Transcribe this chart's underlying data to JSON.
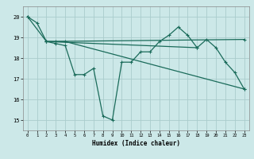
{
  "title": "",
  "xlabel": "Humidex (Indice chaleur)",
  "ylabel": "",
  "bg_color": "#cce8e8",
  "grid_color": "#aacccc",
  "line_color": "#1a6b5a",
  "xlim": [
    -0.5,
    23.5
  ],
  "ylim": [
    14.5,
    20.5
  ],
  "yticks": [
    15,
    16,
    17,
    18,
    19,
    20
  ],
  "xticks": [
    0,
    1,
    2,
    3,
    4,
    5,
    6,
    7,
    8,
    9,
    10,
    11,
    12,
    13,
    14,
    15,
    16,
    17,
    18,
    19,
    20,
    21,
    22,
    23
  ],
  "series": [
    {
      "x": [
        0,
        1,
        2,
        3,
        4,
        5,
        6,
        7,
        8,
        9,
        10,
        11,
        12,
        13,
        14,
        15,
        16,
        17,
        18,
        19,
        20,
        21,
        22,
        23
      ],
      "y": [
        20.0,
        19.7,
        18.8,
        18.7,
        18.6,
        17.2,
        17.2,
        17.5,
        15.2,
        15.0,
        17.8,
        17.8,
        18.3,
        18.3,
        18.8,
        19.1,
        19.5,
        19.1,
        18.5,
        18.9,
        18.5,
        17.8,
        17.3,
        16.5
      ]
    },
    {
      "x": [
        0,
        2,
        3,
        4,
        23
      ],
      "y": [
        20.0,
        18.8,
        18.8,
        18.8,
        16.5
      ]
    },
    {
      "x": [
        2,
        23
      ],
      "y": [
        18.8,
        18.9
      ]
    },
    {
      "x": [
        2,
        18
      ],
      "y": [
        18.8,
        18.5
      ]
    }
  ]
}
